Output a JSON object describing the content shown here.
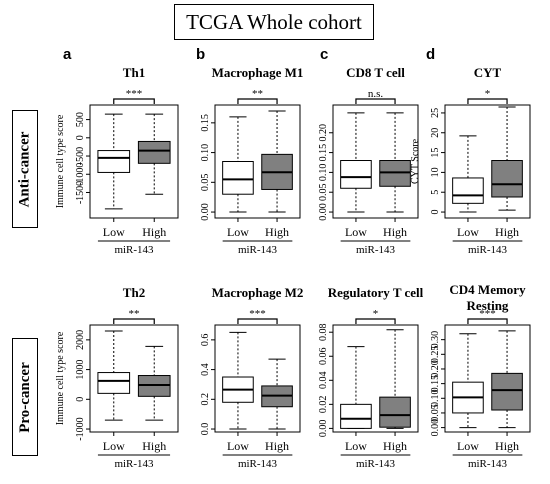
{
  "figure_title": "TCGA Whole cohort",
  "row_labels": [
    "Anti-cancer",
    "Pro-cancer"
  ],
  "panel_letters": [
    "a",
    "b",
    "c",
    "d"
  ],
  "chart_data": [
    {
      "type": "boxplot",
      "title": "Th1",
      "ylabel": "Immune cell type score",
      "xlabel": "miR-143",
      "categories": [
        "Low",
        "High"
      ],
      "significance": "***",
      "ylim": [
        -2200,
        900
      ],
      "yticks": [
        500,
        0,
        -500,
        -1000,
        -1500
      ],
      "ytick_labels": [
        "500",
        "0",
        "-500",
        "-1000",
        "-1500"
      ],
      "boxes": [
        {
          "group": "Low",
          "min": -1950,
          "q1": -950,
          "median": -550,
          "q3": -350,
          "max": 650
        },
        {
          "group": "High",
          "min": -1550,
          "q1": -700,
          "median": -350,
          "q3": -100,
          "max": 650
        }
      ]
    },
    {
      "type": "boxplot",
      "title": "Macrophage M1",
      "ylabel": "",
      "xlabel": "miR-143",
      "categories": [
        "Low",
        "High"
      ],
      "significance": "**",
      "ylim": [
        -0.01,
        0.18
      ],
      "yticks": [
        0.0,
        0.05,
        0.1,
        0.15
      ],
      "ytick_labels": [
        "0.00",
        "0.05",
        "0.10",
        "0.15"
      ],
      "boxes": [
        {
          "group": "Low",
          "min": 0.0,
          "q1": 0.03,
          "median": 0.055,
          "q3": 0.085,
          "max": 0.16
        },
        {
          "group": "High",
          "min": 0.0,
          "q1": 0.038,
          "median": 0.067,
          "q3": 0.097,
          "max": 0.17
        }
      ]
    },
    {
      "type": "boxplot",
      "title": "CD8 T cell",
      "ylabel": "",
      "xlabel": "miR-143",
      "categories": [
        "Low",
        "High"
      ],
      "significance": "n.s.",
      "ylim": [
        -0.015,
        0.27
      ],
      "yticks": [
        0.0,
        0.05,
        0.1,
        0.15,
        0.2
      ],
      "ytick_labels": [
        "0.00",
        "0.05",
        "0.10",
        "0.15",
        "0.20"
      ],
      "boxes": [
        {
          "group": "Low",
          "min": 0.0,
          "q1": 0.06,
          "median": 0.088,
          "q3": 0.13,
          "max": 0.25
        },
        {
          "group": "High",
          "min": 0.0,
          "q1": 0.065,
          "median": 0.1,
          "q3": 0.13,
          "max": 0.25
        }
      ]
    },
    {
      "type": "boxplot",
      "title": "CYT",
      "ylabel": "CYT Score",
      "xlabel": "miR-143",
      "categories": [
        "Low",
        "High"
      ],
      "significance": "*",
      "ylim": [
        -1.5,
        27
      ],
      "yticks": [
        0,
        5,
        10,
        15,
        20,
        25
      ],
      "ytick_labels": [
        "0",
        "5",
        "10",
        "15",
        "20",
        "25"
      ],
      "boxes": [
        {
          "group": "Low",
          "min": 0.0,
          "q1": 2.2,
          "median": 4.2,
          "q3": 8.6,
          "max": 19.2
        },
        {
          "group": "High",
          "min": 0.5,
          "q1": 3.8,
          "median": 7.0,
          "q3": 13.0,
          "max": 26.5
        }
      ]
    },
    {
      "type": "boxplot",
      "title": "Th2",
      "ylabel": "Immune cell type score",
      "xlabel": "miR-143",
      "categories": [
        "Low",
        "High"
      ],
      "significance": "**",
      "ylim": [
        -1100,
        2500
      ],
      "yticks": [
        2000,
        1000,
        0,
        -1000
      ],
      "ytick_labels": [
        "2000",
        "1000",
        "0",
        "-1000"
      ],
      "boxes": [
        {
          "group": "Low",
          "min": -700,
          "q1": 200,
          "median": 620,
          "q3": 900,
          "max": 2300
        },
        {
          "group": "High",
          "min": -700,
          "q1": 100,
          "median": 480,
          "q3": 800,
          "max": 1780
        }
      ]
    },
    {
      "type": "boxplot",
      "title": "Macrophage M2",
      "ylabel": "",
      "xlabel": "miR-143",
      "categories": [
        "Low",
        "High"
      ],
      "significance": "***",
      "ylim": [
        -0.02,
        0.7
      ],
      "yticks": [
        0.0,
        0.2,
        0.4,
        0.6
      ],
      "ytick_labels": [
        "0.0",
        "0.2",
        "0.4",
        "0.6"
      ],
      "boxes": [
        {
          "group": "Low",
          "min": 0.0,
          "q1": 0.18,
          "median": 0.265,
          "q3": 0.35,
          "max": 0.65
        },
        {
          "group": "High",
          "min": 0.0,
          "q1": 0.15,
          "median": 0.225,
          "q3": 0.29,
          "max": 0.47
        }
      ]
    },
    {
      "type": "boxplot",
      "title": "Regulatory T cell",
      "ylabel": "",
      "xlabel": "miR-143",
      "categories": [
        "Low",
        "High"
      ],
      "significance": "*",
      "ylim": [
        -0.003,
        0.086
      ],
      "yticks": [
        0.0,
        0.02,
        0.04,
        0.06,
        0.08
      ],
      "ytick_labels": [
        "0.00",
        "0.02",
        "0.04",
        "0.06",
        "0.08"
      ],
      "boxes": [
        {
          "group": "Low",
          "min": 0.0,
          "q1": 0.0,
          "median": 0.008,
          "q3": 0.02,
          "max": 0.068
        },
        {
          "group": "High",
          "min": 0.0,
          "q1": 0.001,
          "median": 0.011,
          "q3": 0.026,
          "max": 0.082
        }
      ]
    },
    {
      "type": "boxplot",
      "title": "CD4 Memory\nResting",
      "ylabel": "",
      "xlabel": "miR-143",
      "categories": [
        "Low",
        "High"
      ],
      "significance": "***",
      "ylim": [
        -0.015,
        0.35
      ],
      "yticks": [
        0.0,
        0.05,
        0.1,
        0.15,
        0.2,
        0.25,
        0.3
      ],
      "ytick_labels": [
        "0.00",
        "0.05",
        "0.10",
        "0.15",
        "0.20",
        "0.25",
        "0.30"
      ],
      "boxes": [
        {
          "group": "Low",
          "min": 0.0,
          "q1": 0.05,
          "median": 0.103,
          "q3": 0.155,
          "max": 0.32
        },
        {
          "group": "High",
          "min": 0.0,
          "q1": 0.06,
          "median": 0.128,
          "q3": 0.185,
          "max": 0.33
        }
      ]
    }
  ],
  "colors": {
    "low_fill": "#ffffff",
    "high_fill": "#808080",
    "stroke": "#000000"
  }
}
